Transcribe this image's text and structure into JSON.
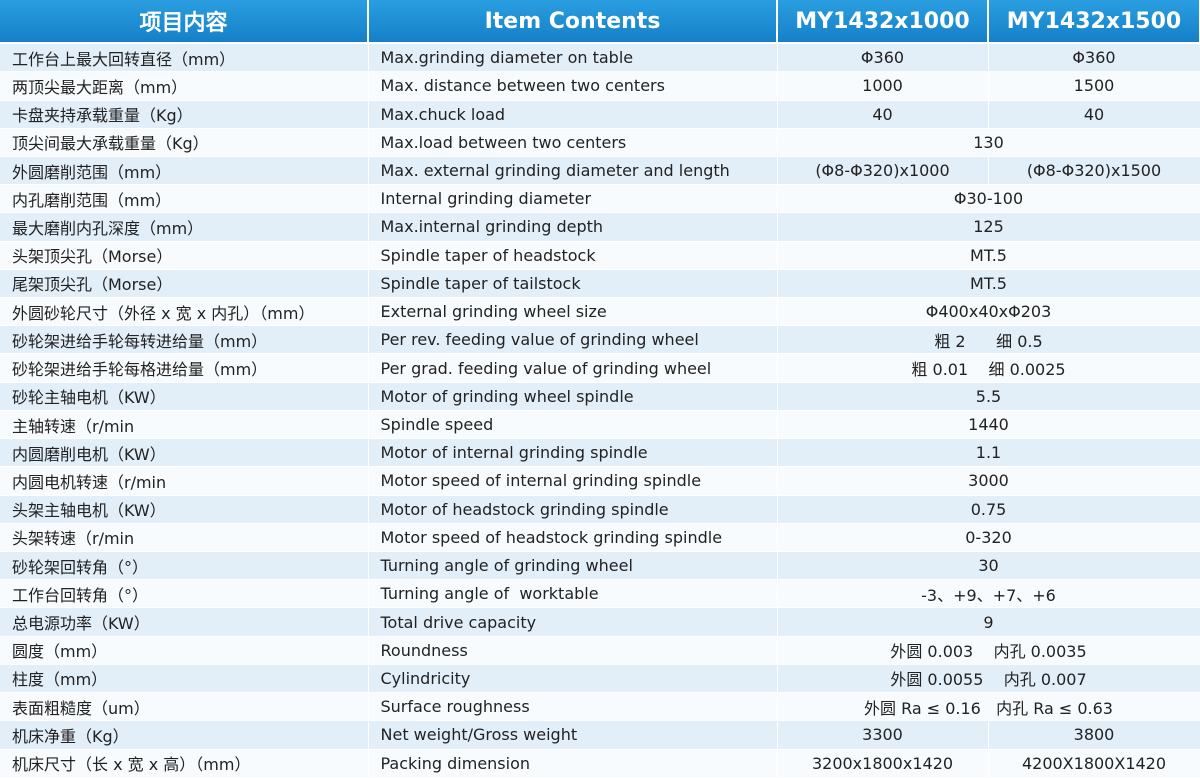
{
  "table": {
    "header": [
      "项目内容",
      "Item Contents",
      "MY1432x1000",
      "MY1432x1500"
    ],
    "rows": [
      [
        "工作台上最大回转直径（mm）",
        "Max.grinding diameter on table",
        "Φ360",
        "Φ360"
      ],
      [
        "两顶尖最大距离（mm）",
        "Max. distance between two centers",
        "1000",
        "1500"
      ],
      [
        "卡盘夹持承载重量（Kg）",
        "Max.chuck load",
        "40",
        "40"
      ],
      [
        "顶尖间最大承载重量（Kg）",
        "Max.load between two centers",
        "130"
      ],
      [
        "外圆磨削范围（mm）",
        "Max. external grinding diameter and length",
        "(Φ8-Φ320)x1000",
        "(Φ8-Φ320)x1500"
      ],
      [
        "内孔磨削范围（mm）",
        "Internal grinding diameter",
        "Φ30-100"
      ],
      [
        "最大磨削内孔深度（mm）",
        "Max.internal grinding depth",
        "125"
      ],
      [
        "头架顶尖孔（Morse）",
        "Spindle taper of headstock",
        "MT.5"
      ],
      [
        "尾架顶尖孔（Morse）",
        "Spindle taper of tailstock",
        "MT.5"
      ],
      [
        "外圆砂轮尺寸（外径 x 宽 x 内孔）（mm）",
        "External grinding wheel size",
        "Φ400x40xΦ203"
      ],
      [
        "砂轮架进给手轮每转进给量（mm）",
        "Per rev. feeding value of grinding wheel",
        "粗 2      细 0.5"
      ],
      [
        "砂轮架进给手轮每格进给量（mm）",
        "Per grad. feeding value of grinding wheel",
        "粗 0.01    细 0.0025"
      ],
      [
        "砂轮主轴电机（KW）",
        "Motor of grinding wheel spindle",
        "5.5"
      ],
      [
        "主轴转速（r/min",
        "Spindle speed",
        "1440"
      ],
      [
        "内圆磨削电机（KW）",
        "Motor of internal grinding spindle",
        "1.1"
      ],
      [
        "内圆电机转速（r/min",
        "Motor speed of internal grinding spindle",
        "3000"
      ],
      [
        "头架主轴电机（KW）",
        "Motor of headstock grinding spindle",
        "0.75"
      ],
      [
        "头架转速（r/min",
        "Motor speed of headstock grinding spindle",
        "0-320"
      ],
      [
        "砂轮架回转角（°）",
        "Turning angle of grinding wheel",
        "30"
      ],
      [
        "工作台回转角（°）",
        "Turning angle of  worktable",
        "-3、+9、+7、+6"
      ],
      [
        "总电源功率（KW）",
        "Total drive capacity",
        "9"
      ],
      [
        "圆度（mm）",
        "Roundness",
        "外圆 0.003    内孔 0.0035"
      ],
      [
        "柱度（mm）",
        "Cylindricity",
        "外圆 0.0055    内孔 0.007"
      ],
      [
        "表面粗糙度（um）",
        "Surface roughness",
        "外圆 Ra ≤ 0.16   内孔 Ra ≤ 0.63"
      ],
      [
        "机床净重（Kg）",
        "Net weight/Gross weight",
        "3300",
        "3800"
      ],
      [
        "机床尺寸（长 x 宽 x 高）（mm）",
        "Packing dimension",
        "3200x1800x1420",
        "4200X1800X1420"
      ]
    ]
  }
}
